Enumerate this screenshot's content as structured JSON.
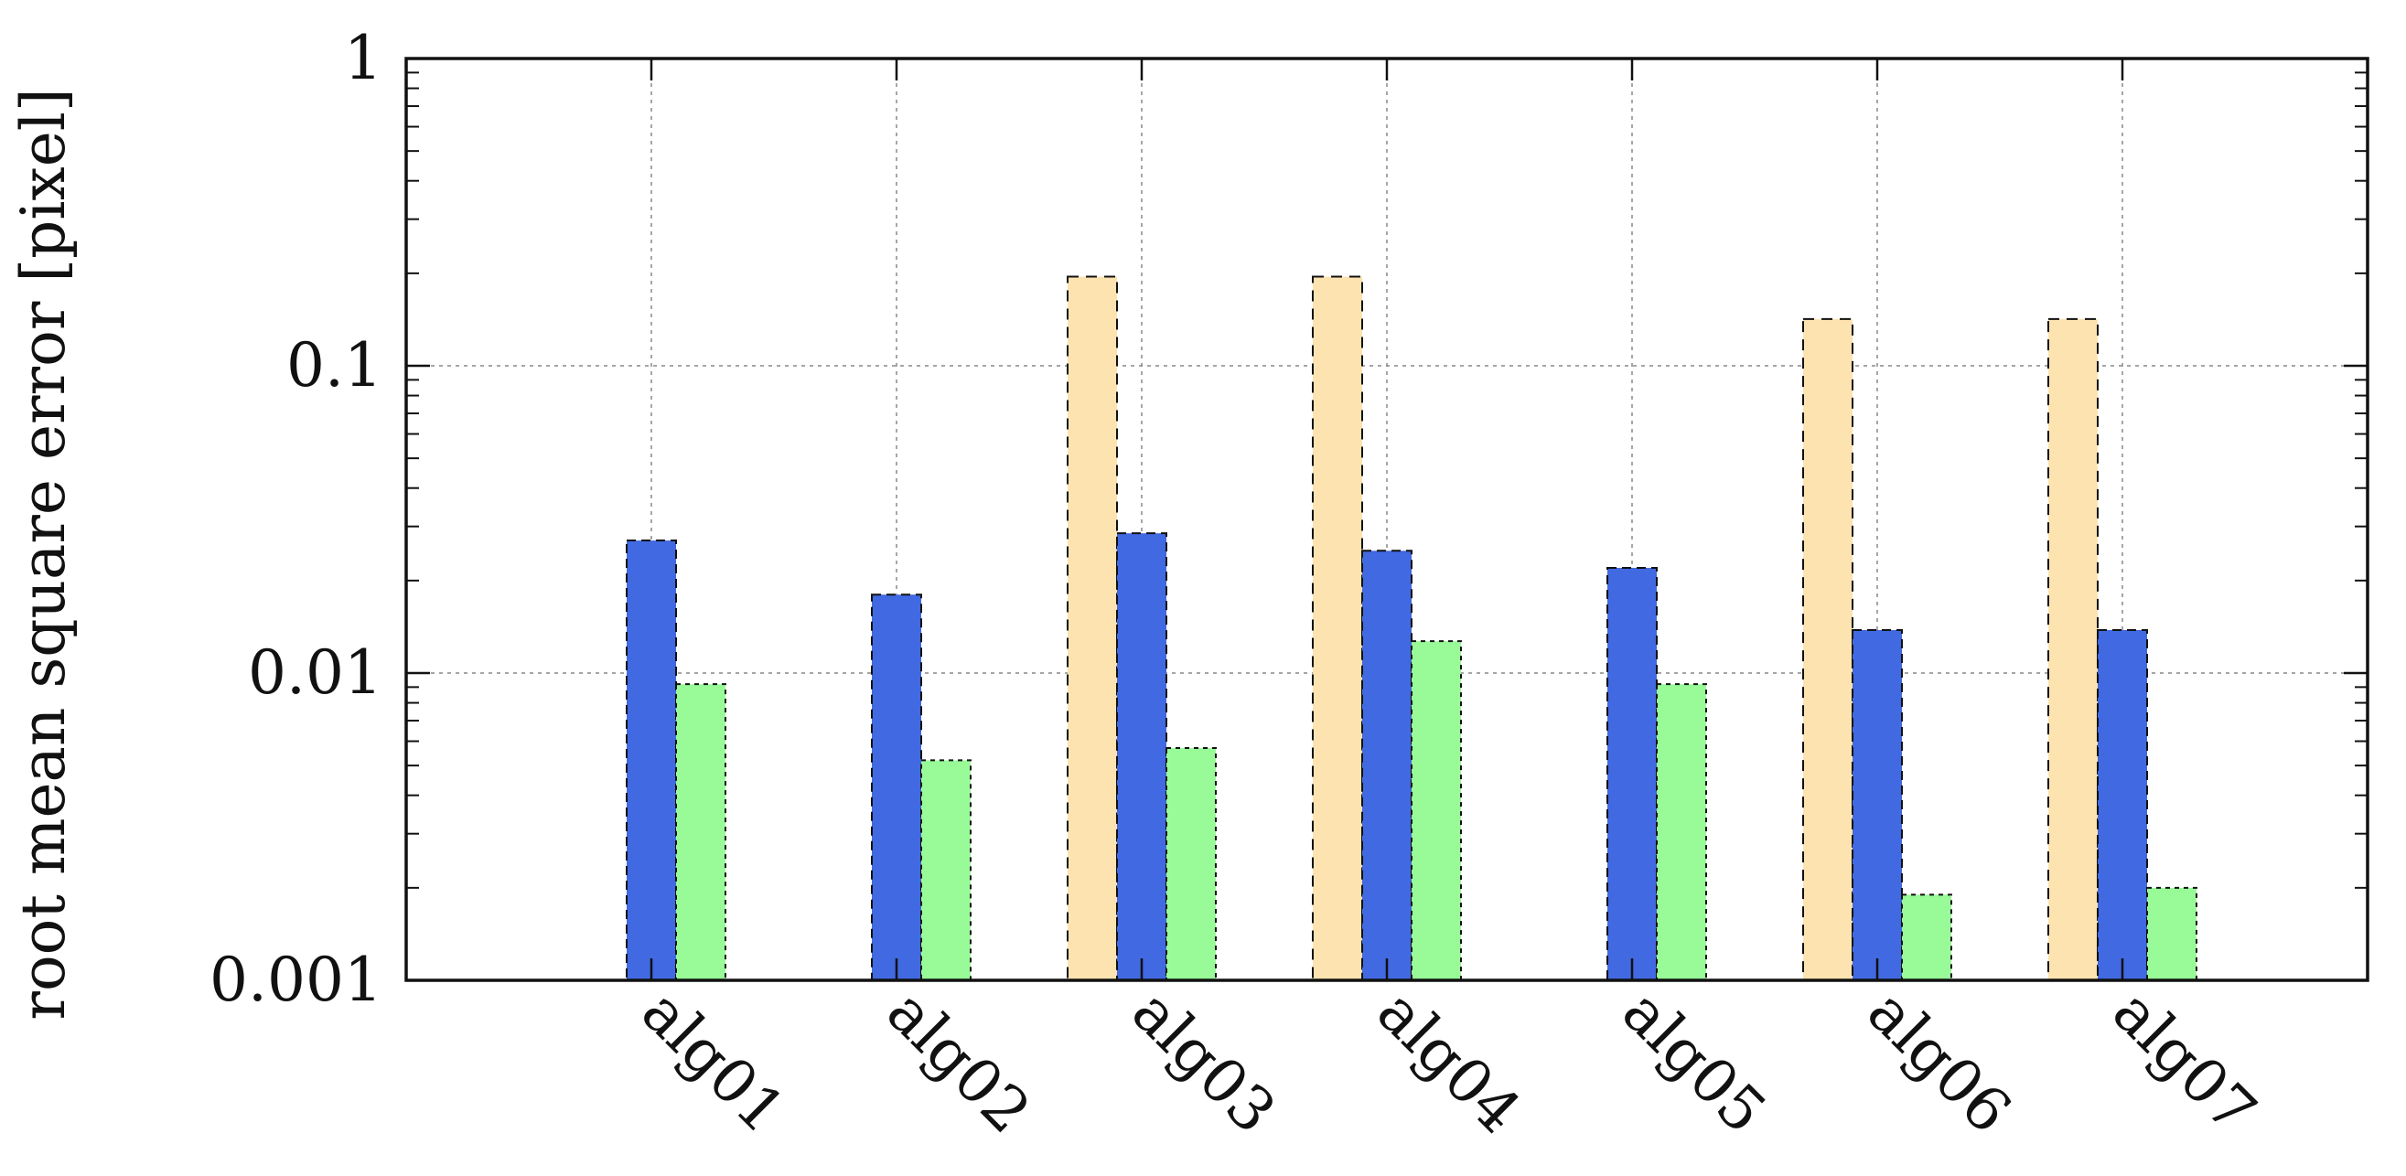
{
  "chart_data": {
    "type": "bar",
    "ylabel": "root mean square error [pixel]",
    "yscale": "log",
    "ylim": [
      0.001,
      1
    ],
    "yticks": [
      {
        "value": 0.001,
        "label": "0.001"
      },
      {
        "value": 0.01,
        "label": "0.01"
      },
      {
        "value": 0.1,
        "label": "0.1"
      },
      {
        "value": 1,
        "label": "1"
      }
    ],
    "categories": [
      "alg01",
      "alg02",
      "alg03",
      "alg04",
      "alg05",
      "alg06",
      "alg07"
    ],
    "grid": true,
    "legend": "none",
    "series": [
      {
        "color": "#fde3b0",
        "values": [
          null,
          null,
          0.195,
          0.195,
          null,
          0.142,
          0.142
        ]
      },
      {
        "color": "#4169e1",
        "values": [
          0.027,
          0.018,
          0.0285,
          0.025,
          0.022,
          0.0138,
          0.0138
        ]
      },
      {
        "color": "#98fb98",
        "values": [
          0.0092,
          0.0052,
          0.0057,
          0.0127,
          0.0092,
          0.0019,
          0.002
        ]
      }
    ]
  }
}
